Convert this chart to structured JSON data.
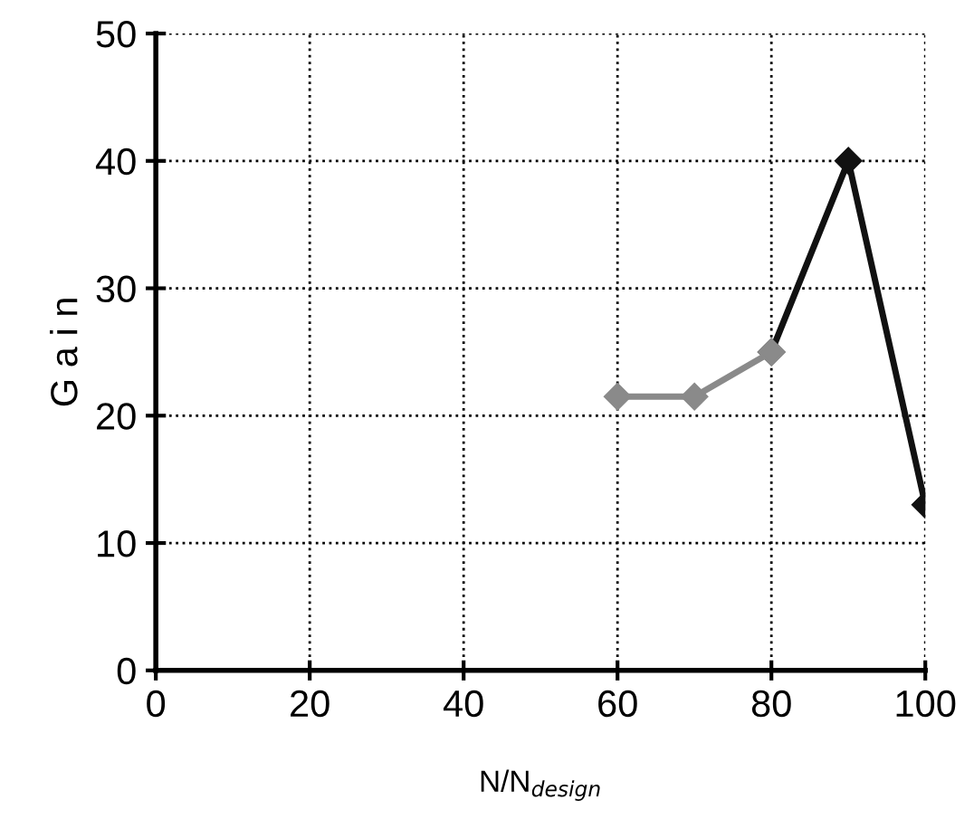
{
  "chart_data": {
    "type": "line",
    "xlabel": "N/N$_{design}$",
    "ylabel": "G a i n",
    "series": [
      {
        "color": "#8a8a8a",
        "x": [
          60,
          70,
          80
        ],
        "values": [
          21.5,
          21.5,
          25
        ]
      },
      {
        "color": "#111111",
        "x": [
          80,
          90,
          100
        ],
        "values": [
          25,
          40,
          13
        ]
      }
    ],
    "xlim": [
      0,
      100
    ],
    "ylim": [
      0,
      50
    ],
    "xticks": [
      0,
      20,
      40,
      60,
      80,
      100
    ],
    "yticks": [
      0,
      10,
      20,
      30,
      40,
      50
    ],
    "grid": true,
    "marker": "diamond",
    "line_style": "solid"
  }
}
